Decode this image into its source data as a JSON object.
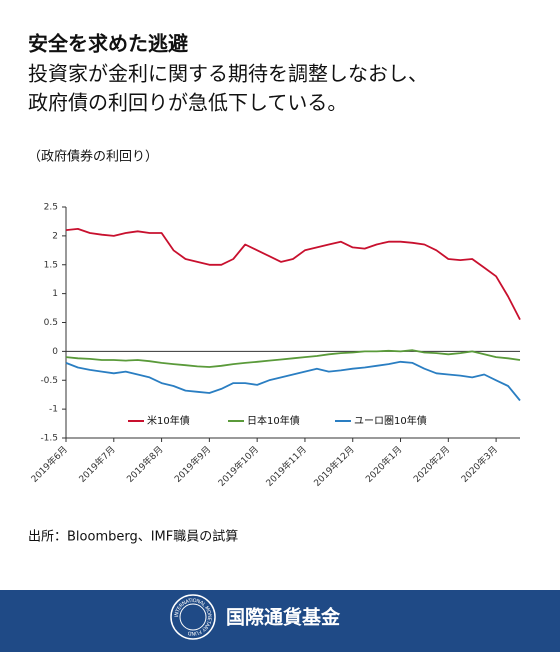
{
  "chart_data": {
    "type": "line",
    "title": "安全を求めた逃避",
    "subtitle": [
      "投資家が金利に関する期待を調整しなおし、",
      "政府債の利回りが急低下している。"
    ],
    "ylabel": "（政府債券の利回り）",
    "source": "出所：Bloomberg、IMF職員の試算",
    "categories": [
      "2019年6月",
      null,
      null,
      null,
      "2019年7月",
      null,
      null,
      null,
      "2019年8月",
      null,
      null,
      null,
      "2019年9月",
      null,
      null,
      null,
      "2019年10月",
      null,
      null,
      null,
      "2019年11月",
      null,
      null,
      null,
      "2019年12月",
      null,
      null,
      null,
      "2020年1月",
      null,
      null,
      null,
      "2020年2月",
      null,
      null,
      null,
      "2020年3月",
      null,
      null
    ],
    "series": [
      {
        "name": "米10年債",
        "color": "#c8102e",
        "values": [
          2.1,
          2.12,
          2.05,
          2.02,
          2.0,
          2.05,
          2.08,
          2.05,
          2.05,
          1.75,
          1.6,
          1.55,
          1.5,
          1.5,
          1.6,
          1.85,
          1.75,
          1.65,
          1.55,
          1.6,
          1.75,
          1.8,
          1.85,
          1.9,
          1.8,
          1.78,
          1.85,
          1.9,
          1.9,
          1.88,
          1.85,
          1.75,
          1.6,
          1.58,
          1.6,
          1.45,
          1.3,
          0.95,
          0.55
        ]
      },
      {
        "name": "日本10年債",
        "color": "#5a9a3a",
        "values": [
          -0.1,
          -0.12,
          -0.13,
          -0.15,
          -0.15,
          -0.16,
          -0.15,
          -0.17,
          -0.2,
          -0.22,
          -0.24,
          -0.26,
          -0.27,
          -0.25,
          -0.22,
          -0.2,
          -0.18,
          -0.16,
          -0.14,
          -0.12,
          -0.1,
          -0.08,
          -0.05,
          -0.03,
          -0.02,
          0.0,
          0.0,
          0.01,
          0.0,
          0.02,
          -0.02,
          -0.03,
          -0.05,
          -0.03,
          0.0,
          -0.05,
          -0.1,
          -0.12,
          -0.15
        ]
      },
      {
        "name": "ユーロ圏10年債",
        "color": "#2a7ec2",
        "values": [
          -0.2,
          -0.28,
          -0.32,
          -0.35,
          -0.38,
          -0.35,
          -0.4,
          -0.45,
          -0.55,
          -0.6,
          -0.68,
          -0.7,
          -0.72,
          -0.65,
          -0.55,
          -0.55,
          -0.58,
          -0.5,
          -0.45,
          -0.4,
          -0.35,
          -0.3,
          -0.35,
          -0.33,
          -0.3,
          -0.28,
          -0.25,
          -0.22,
          -0.18,
          -0.2,
          -0.3,
          -0.38,
          -0.4,
          -0.42,
          -0.45,
          -0.4,
          -0.5,
          -0.6,
          -0.85
        ]
      }
    ],
    "ylim": [
      -1.5,
      2.5
    ],
    "yticks": [
      2.5,
      2,
      1.5,
      1,
      0.5,
      0,
      -0.5,
      -1,
      -1.5
    ],
    "grid": false,
    "legend": "bottom"
  },
  "footer": {
    "org": "国際通貨基金",
    "logo_text": "INTERNATIONAL MONETARY FUND"
  }
}
